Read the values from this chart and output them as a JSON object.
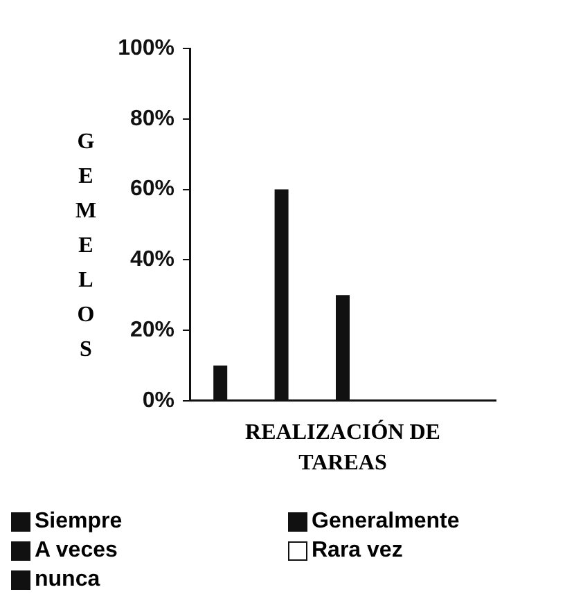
{
  "chart_data": {
    "type": "bar",
    "xlabel": "REALIZACIÓN DE TAREAS",
    "ylabel": "GEMELOS",
    "categories": [
      null
    ],
    "series": [
      {
        "name": "Siempre",
        "color": "#111111",
        "values": [
          10
        ]
      },
      {
        "name": "Generalmente",
        "color": "#111111",
        "values": [
          60
        ]
      },
      {
        "name": "A veces",
        "color": "#111111",
        "values": [
          30
        ]
      },
      {
        "name": "Rara vez",
        "color": "#ffffff",
        "values": [
          0
        ]
      },
      {
        "name": "nunca",
        "color": "#111111",
        "values": [
          0
        ]
      }
    ],
    "ylim": [
      0,
      100
    ],
    "yticks": [
      {
        "value": 0,
        "label": "0%"
      },
      {
        "value": 20,
        "label": "20%"
      },
      {
        "value": 40,
        "label": "40%"
      },
      {
        "value": 60,
        "label": "60%"
      },
      {
        "value": 80,
        "label": "80%"
      },
      {
        "value": 100,
        "label": "100%"
      }
    ],
    "grid": false,
    "legend": "bottom"
  }
}
